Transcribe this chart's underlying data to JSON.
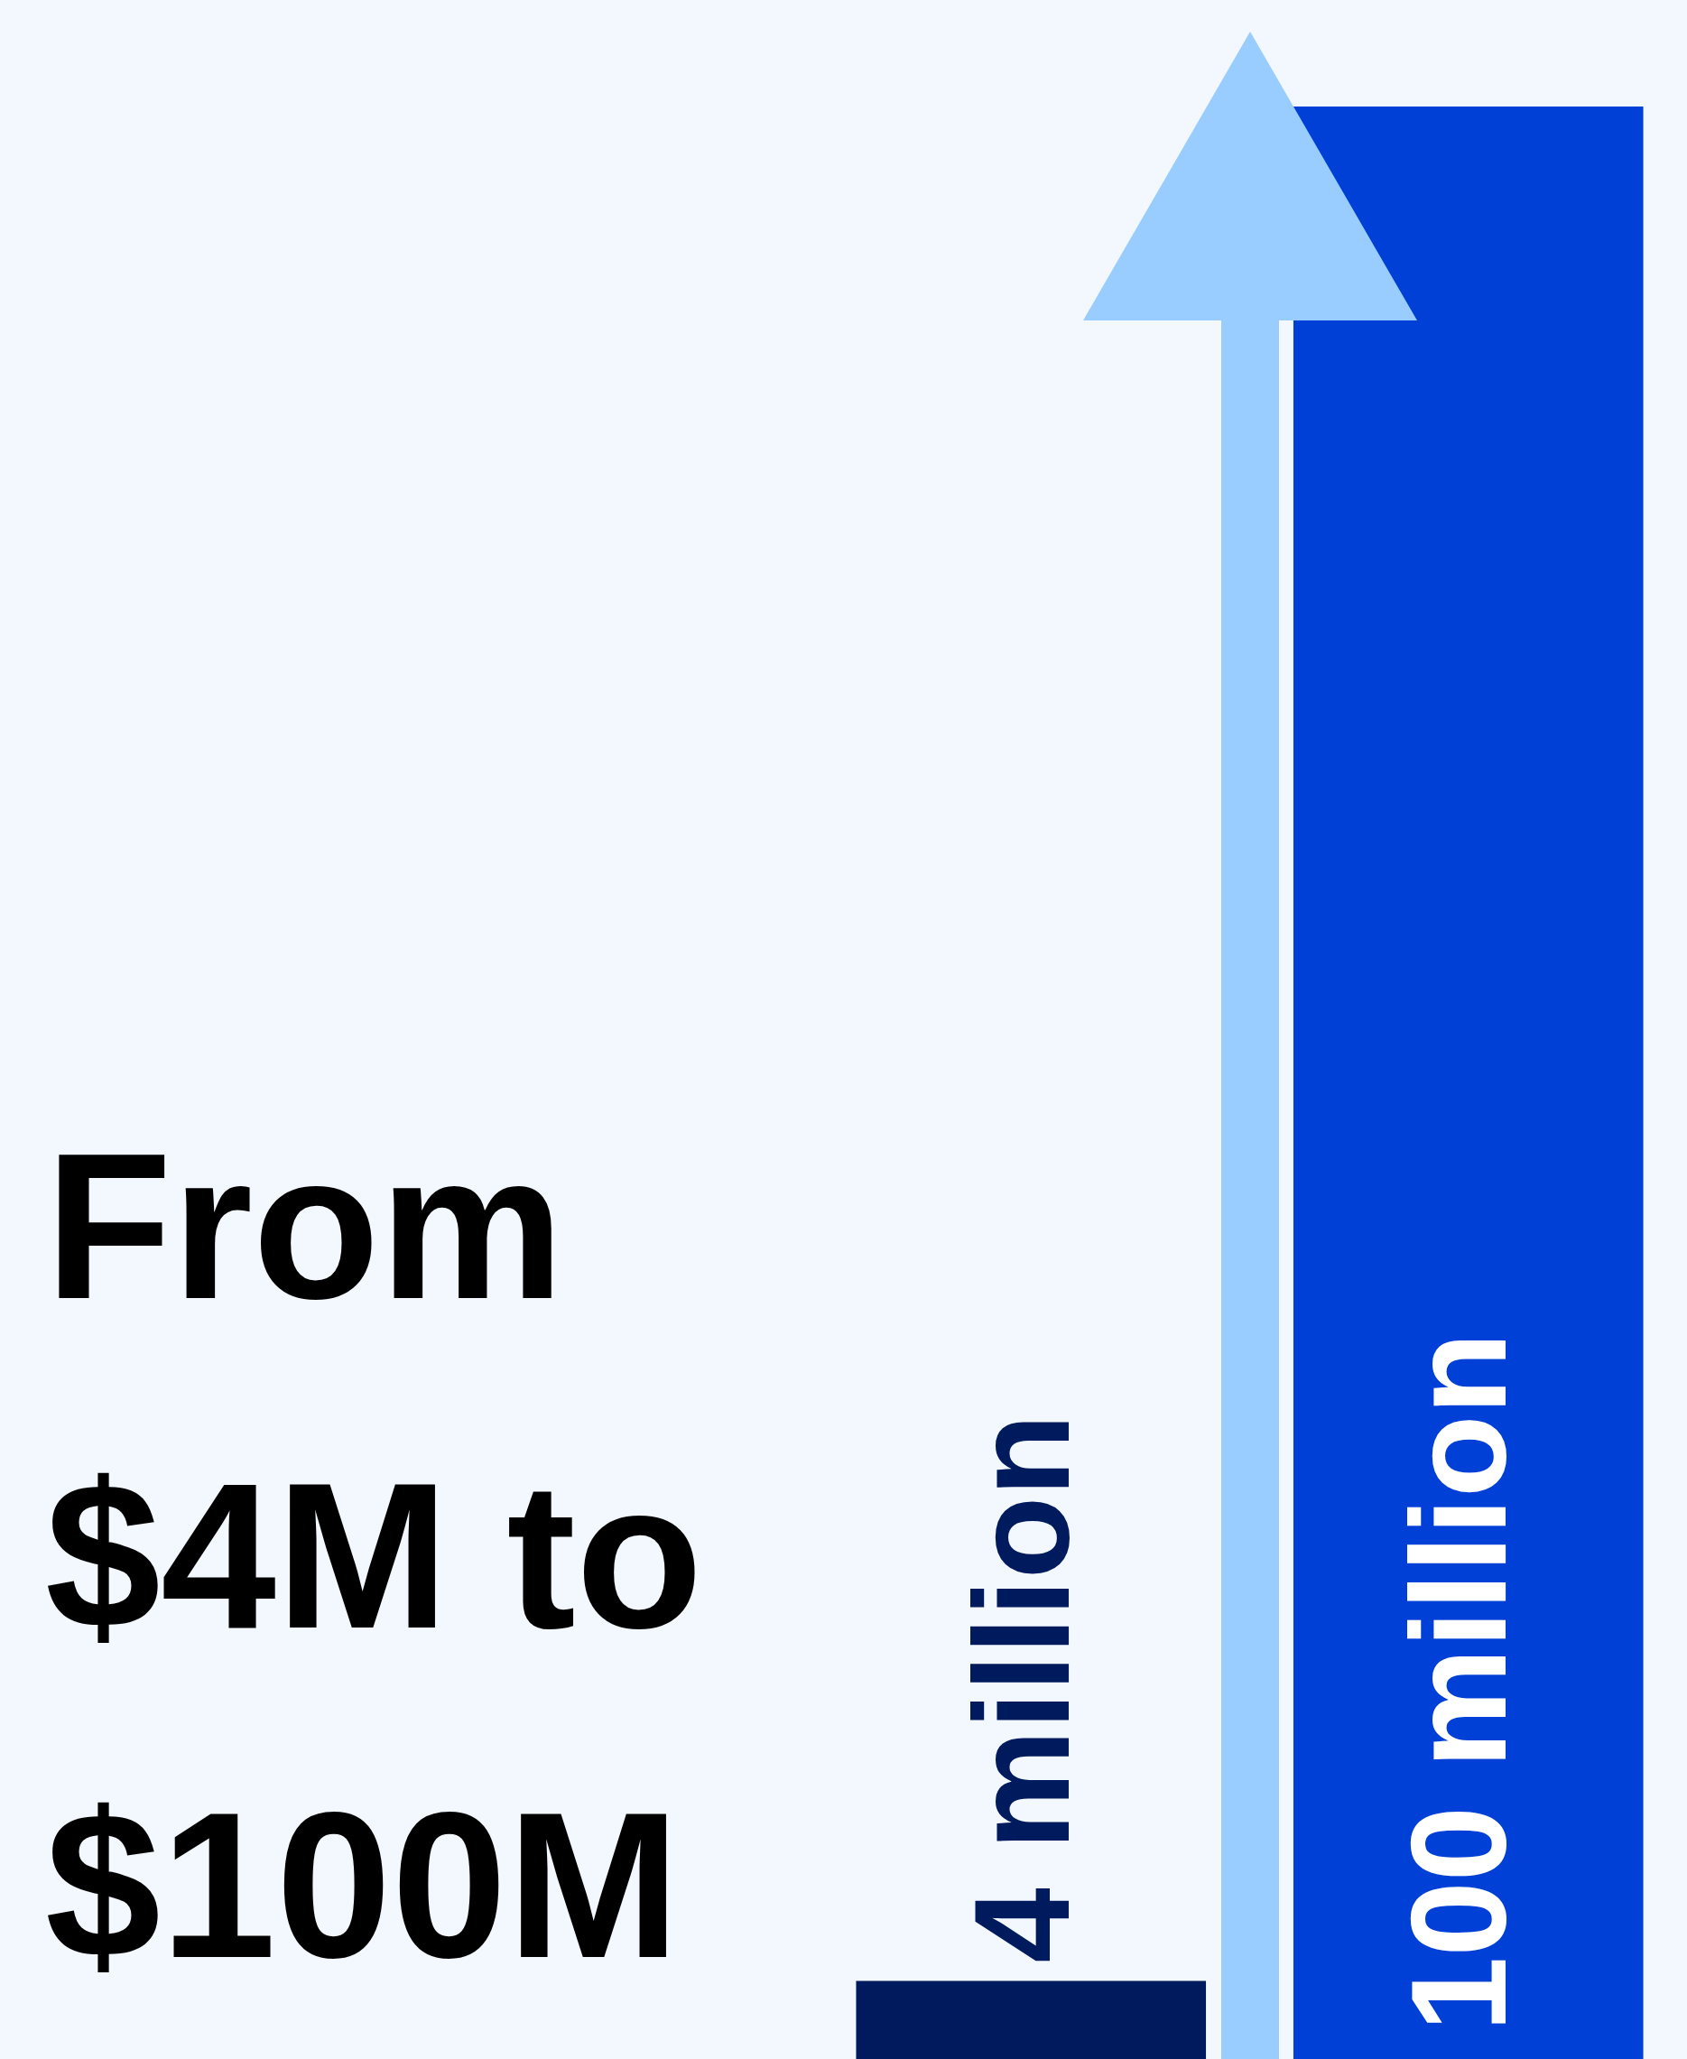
{
  "chart_data": {
    "type": "bar",
    "title": "From $4M to $100M",
    "categories": [
      null,
      null
    ],
    "values": [
      4,
      100
    ],
    "colors": [
      "#001a5e",
      "#0040d6"
    ],
    "value_labels": [
      "4 million",
      "100 million"
    ]
  }
}
